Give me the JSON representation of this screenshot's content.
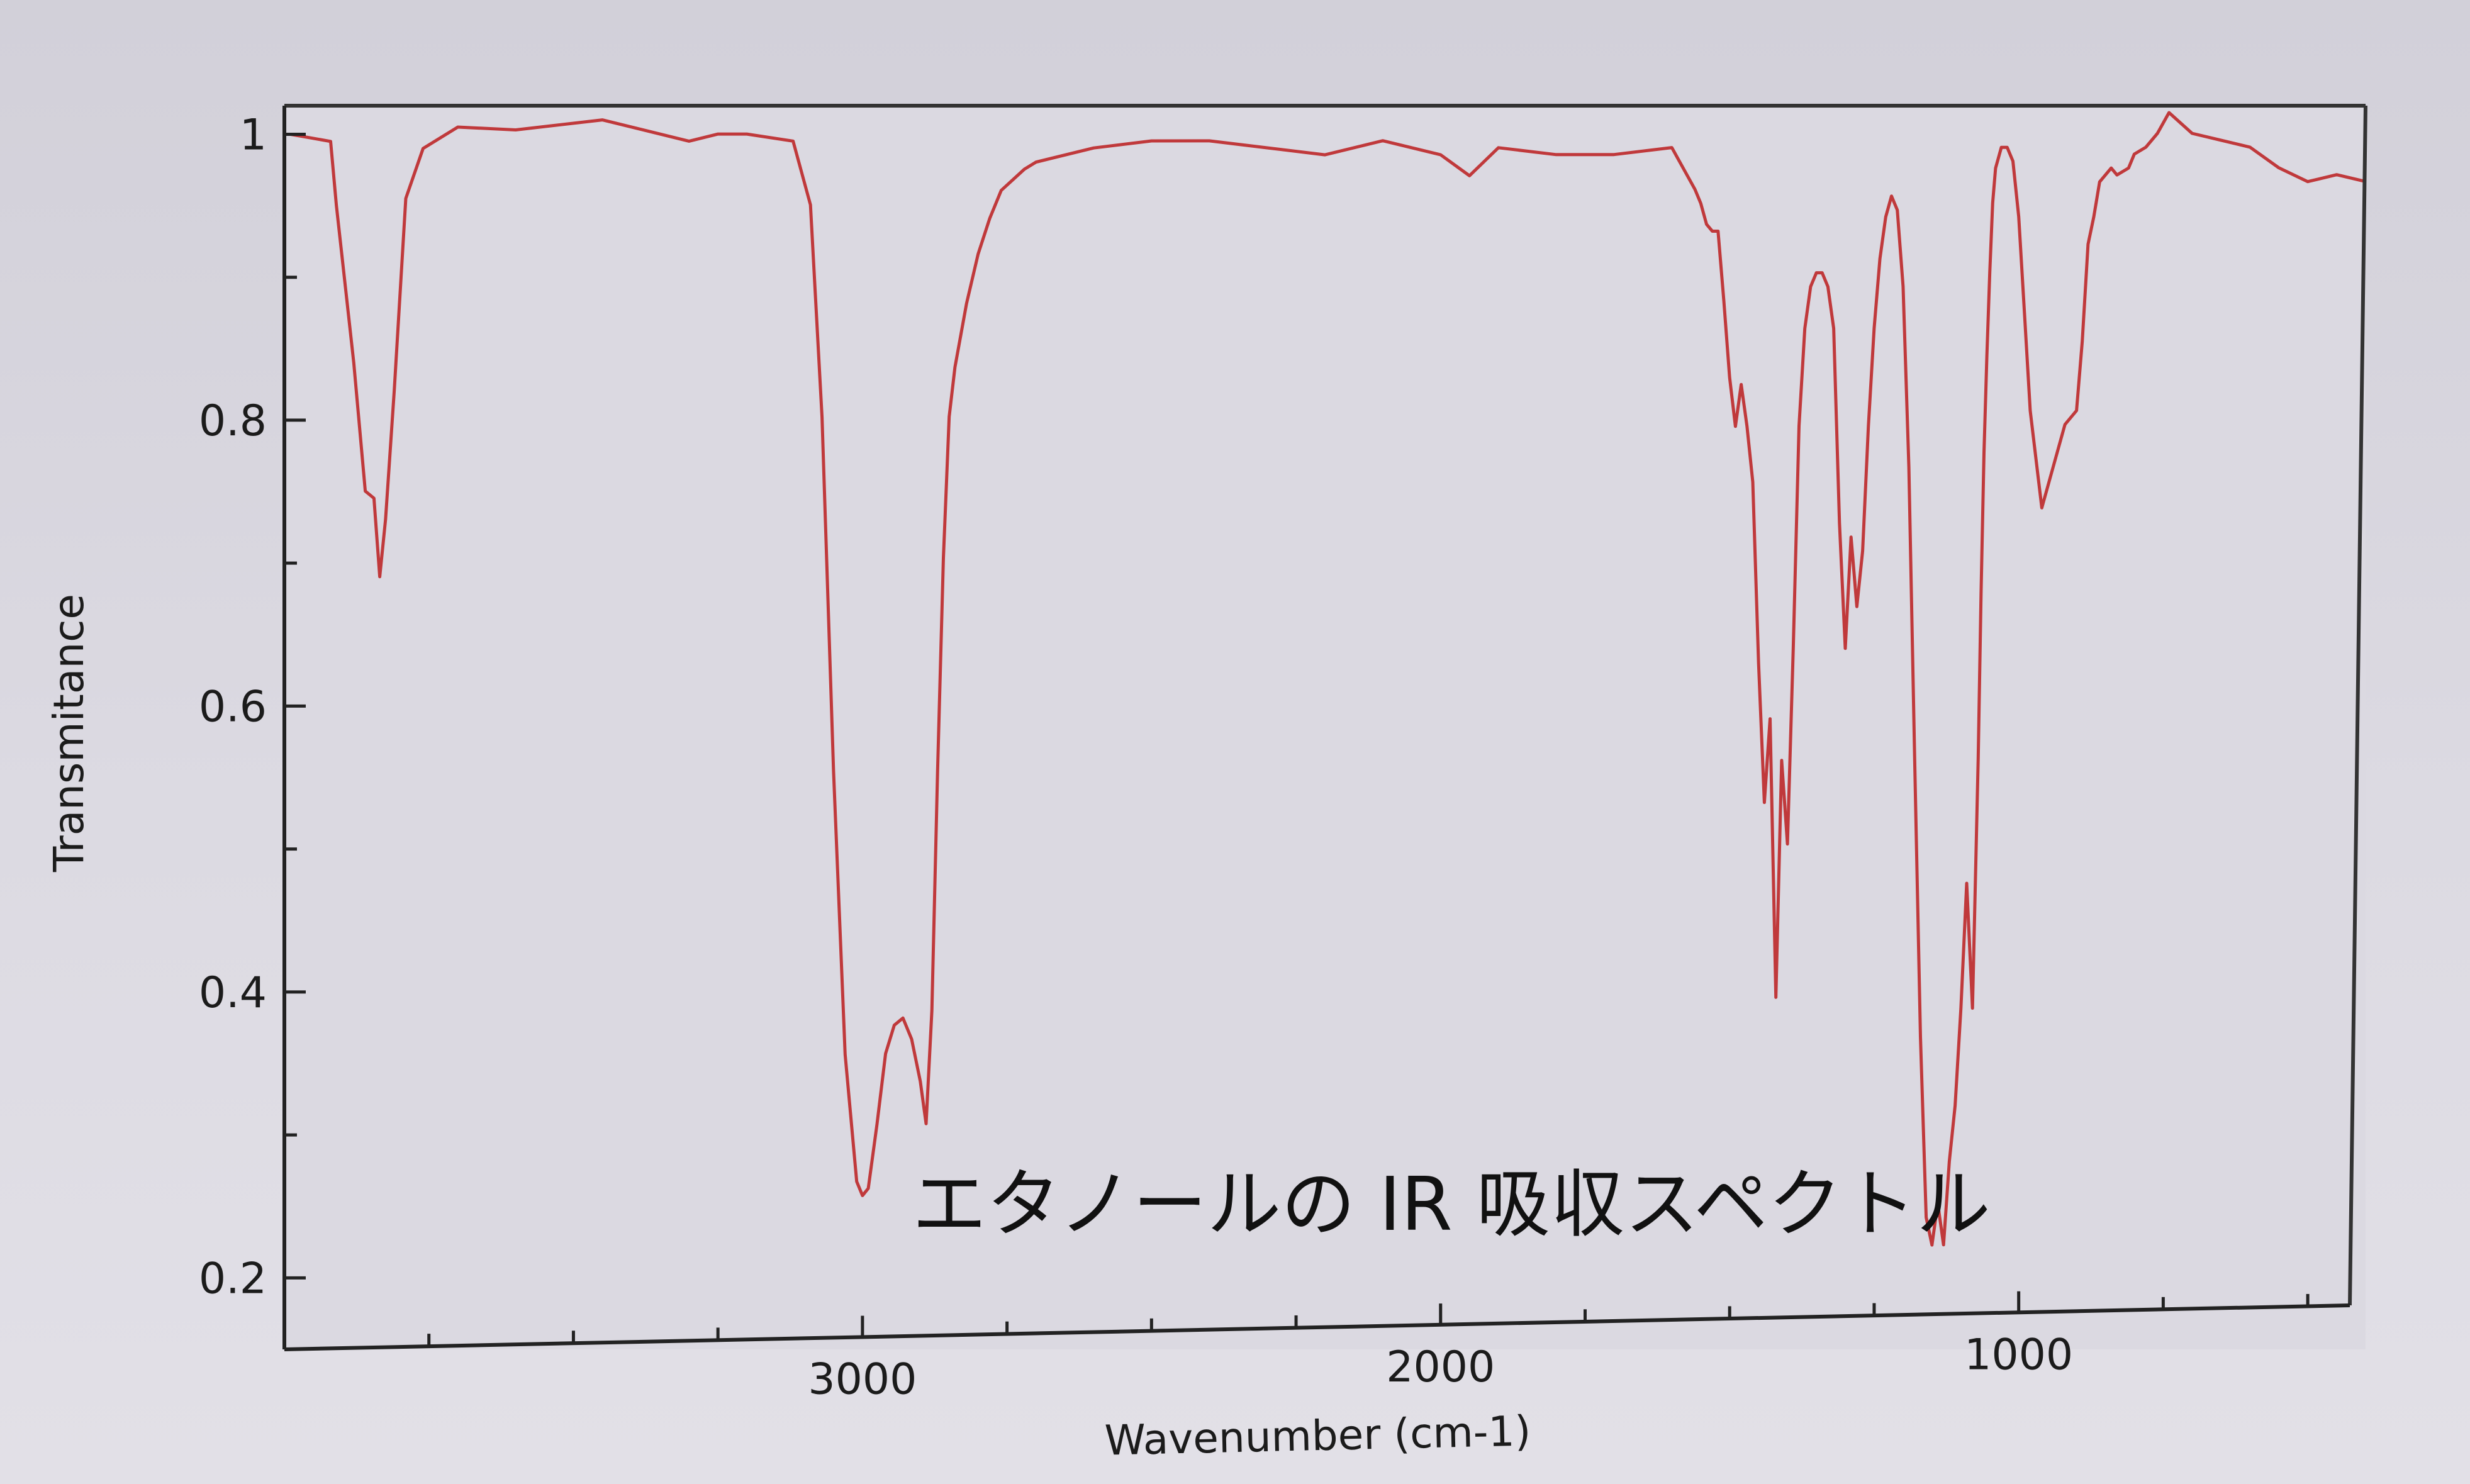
{
  "chart_data": {
    "type": "line",
    "title": "",
    "xlabel": "Wavenumber (cm-1)",
    "ylabel": "Transmitance",
    "annotation": "エタノールの IR 吸収スペクトル",
    "x_reversed": true,
    "xlim": [
      4000,
      400
    ],
    "ylim": [
      0.15,
      1.02
    ],
    "xticks": [
      3000,
      2000,
      1000
    ],
    "yticks": [
      0.2,
      0.4,
      0.6,
      0.8,
      1
    ],
    "ytick_labels": [
      "0.2",
      "0.4",
      "0.6",
      "0.8",
      "1"
    ],
    "grid": false,
    "line_color": "#c0393b",
    "series": [
      {
        "x": [
          3990,
          3920,
          3910,
          3880,
          3860,
          3845,
          3835,
          3825,
          3810,
          3790,
          3760,
          3700,
          3600,
          3450,
          3300,
          3250,
          3200,
          3120,
          3090,
          3070,
          3050,
          3030,
          3010,
          3000,
          2990,
          2975,
          2960,
          2945,
          2930,
          2915,
          2900,
          2890,
          2880,
          2870,
          2860,
          2850,
          2840,
          2820,
          2800,
          2780,
          2760,
          2720,
          2700,
          2600,
          2500,
          2400,
          2300,
          2200,
          2100,
          2000,
          1950,
          1900,
          1800,
          1700,
          1600,
          1560,
          1550,
          1540,
          1530,
          1520,
          1510,
          1500,
          1490,
          1480,
          1470,
          1460,
          1450,
          1440,
          1430,
          1420,
          1410,
          1400,
          1390,
          1380,
          1370,
          1360,
          1350,
          1340,
          1330,
          1320,
          1310,
          1300,
          1290,
          1280,
          1270,
          1260,
          1250,
          1240,
          1230,
          1220,
          1210,
          1200,
          1190,
          1180,
          1170,
          1160,
          1150,
          1140,
          1130,
          1120,
          1110,
          1100,
          1090,
          1080,
          1070,
          1065,
          1060,
          1055,
          1050,
          1045,
          1040,
          1030,
          1020,
          1010,
          1000,
          990,
          980,
          960,
          940,
          920,
          900,
          890,
          880,
          870,
          860,
          850,
          840,
          830,
          810,
          800,
          780,
          760,
          740,
          700,
          650,
          600,
          550,
          500,
          450,
          400
        ],
        "y": [
          1.0,
          0.995,
          0.95,
          0.84,
          0.75,
          0.745,
          0.69,
          0.73,
          0.82,
          0.955,
          0.99,
          1.005,
          1.003,
          1.01,
          0.995,
          1.0,
          1.0,
          0.995,
          0.95,
          0.8,
          0.55,
          0.35,
          0.26,
          0.25,
          0.255,
          0.3,
          0.35,
          0.37,
          0.375,
          0.36,
          0.33,
          0.3,
          0.38,
          0.55,
          0.7,
          0.8,
          0.835,
          0.88,
          0.915,
          0.94,
          0.96,
          0.975,
          0.98,
          0.99,
          0.995,
          0.995,
          0.99,
          0.985,
          0.995,
          0.985,
          0.97,
          0.99,
          0.985,
          0.985,
          0.99,
          0.96,
          0.95,
          0.935,
          0.93,
          0.93,
          0.88,
          0.825,
          0.79,
          0.82,
          0.79,
          0.75,
          0.62,
          0.52,
          0.58,
          0.38,
          0.55,
          0.49,
          0.63,
          0.79,
          0.86,
          0.89,
          0.9,
          0.9,
          0.89,
          0.86,
          0.72,
          0.63,
          0.71,
          0.66,
          0.7,
          0.79,
          0.86,
          0.91,
          0.94,
          0.955,
          0.945,
          0.89,
          0.76,
          0.55,
          0.35,
          0.22,
          0.2,
          0.23,
          0.2,
          0.26,
          0.3,
          0.37,
          0.46,
          0.37,
          0.55,
          0.67,
          0.77,
          0.84,
          0.9,
          0.95,
          0.975,
          0.99,
          0.99,
          0.98,
          0.94,
          0.87,
          0.8,
          0.73,
          0.76,
          0.79,
          0.8,
          0.85,
          0.92,
          0.94,
          0.965,
          0.97,
          0.975,
          0.97,
          0.975,
          0.985,
          0.99,
          1.0,
          1.015,
          1.0,
          0.995,
          0.99,
          0.975,
          0.965,
          0.97,
          0.965
        ]
      }
    ]
  }
}
